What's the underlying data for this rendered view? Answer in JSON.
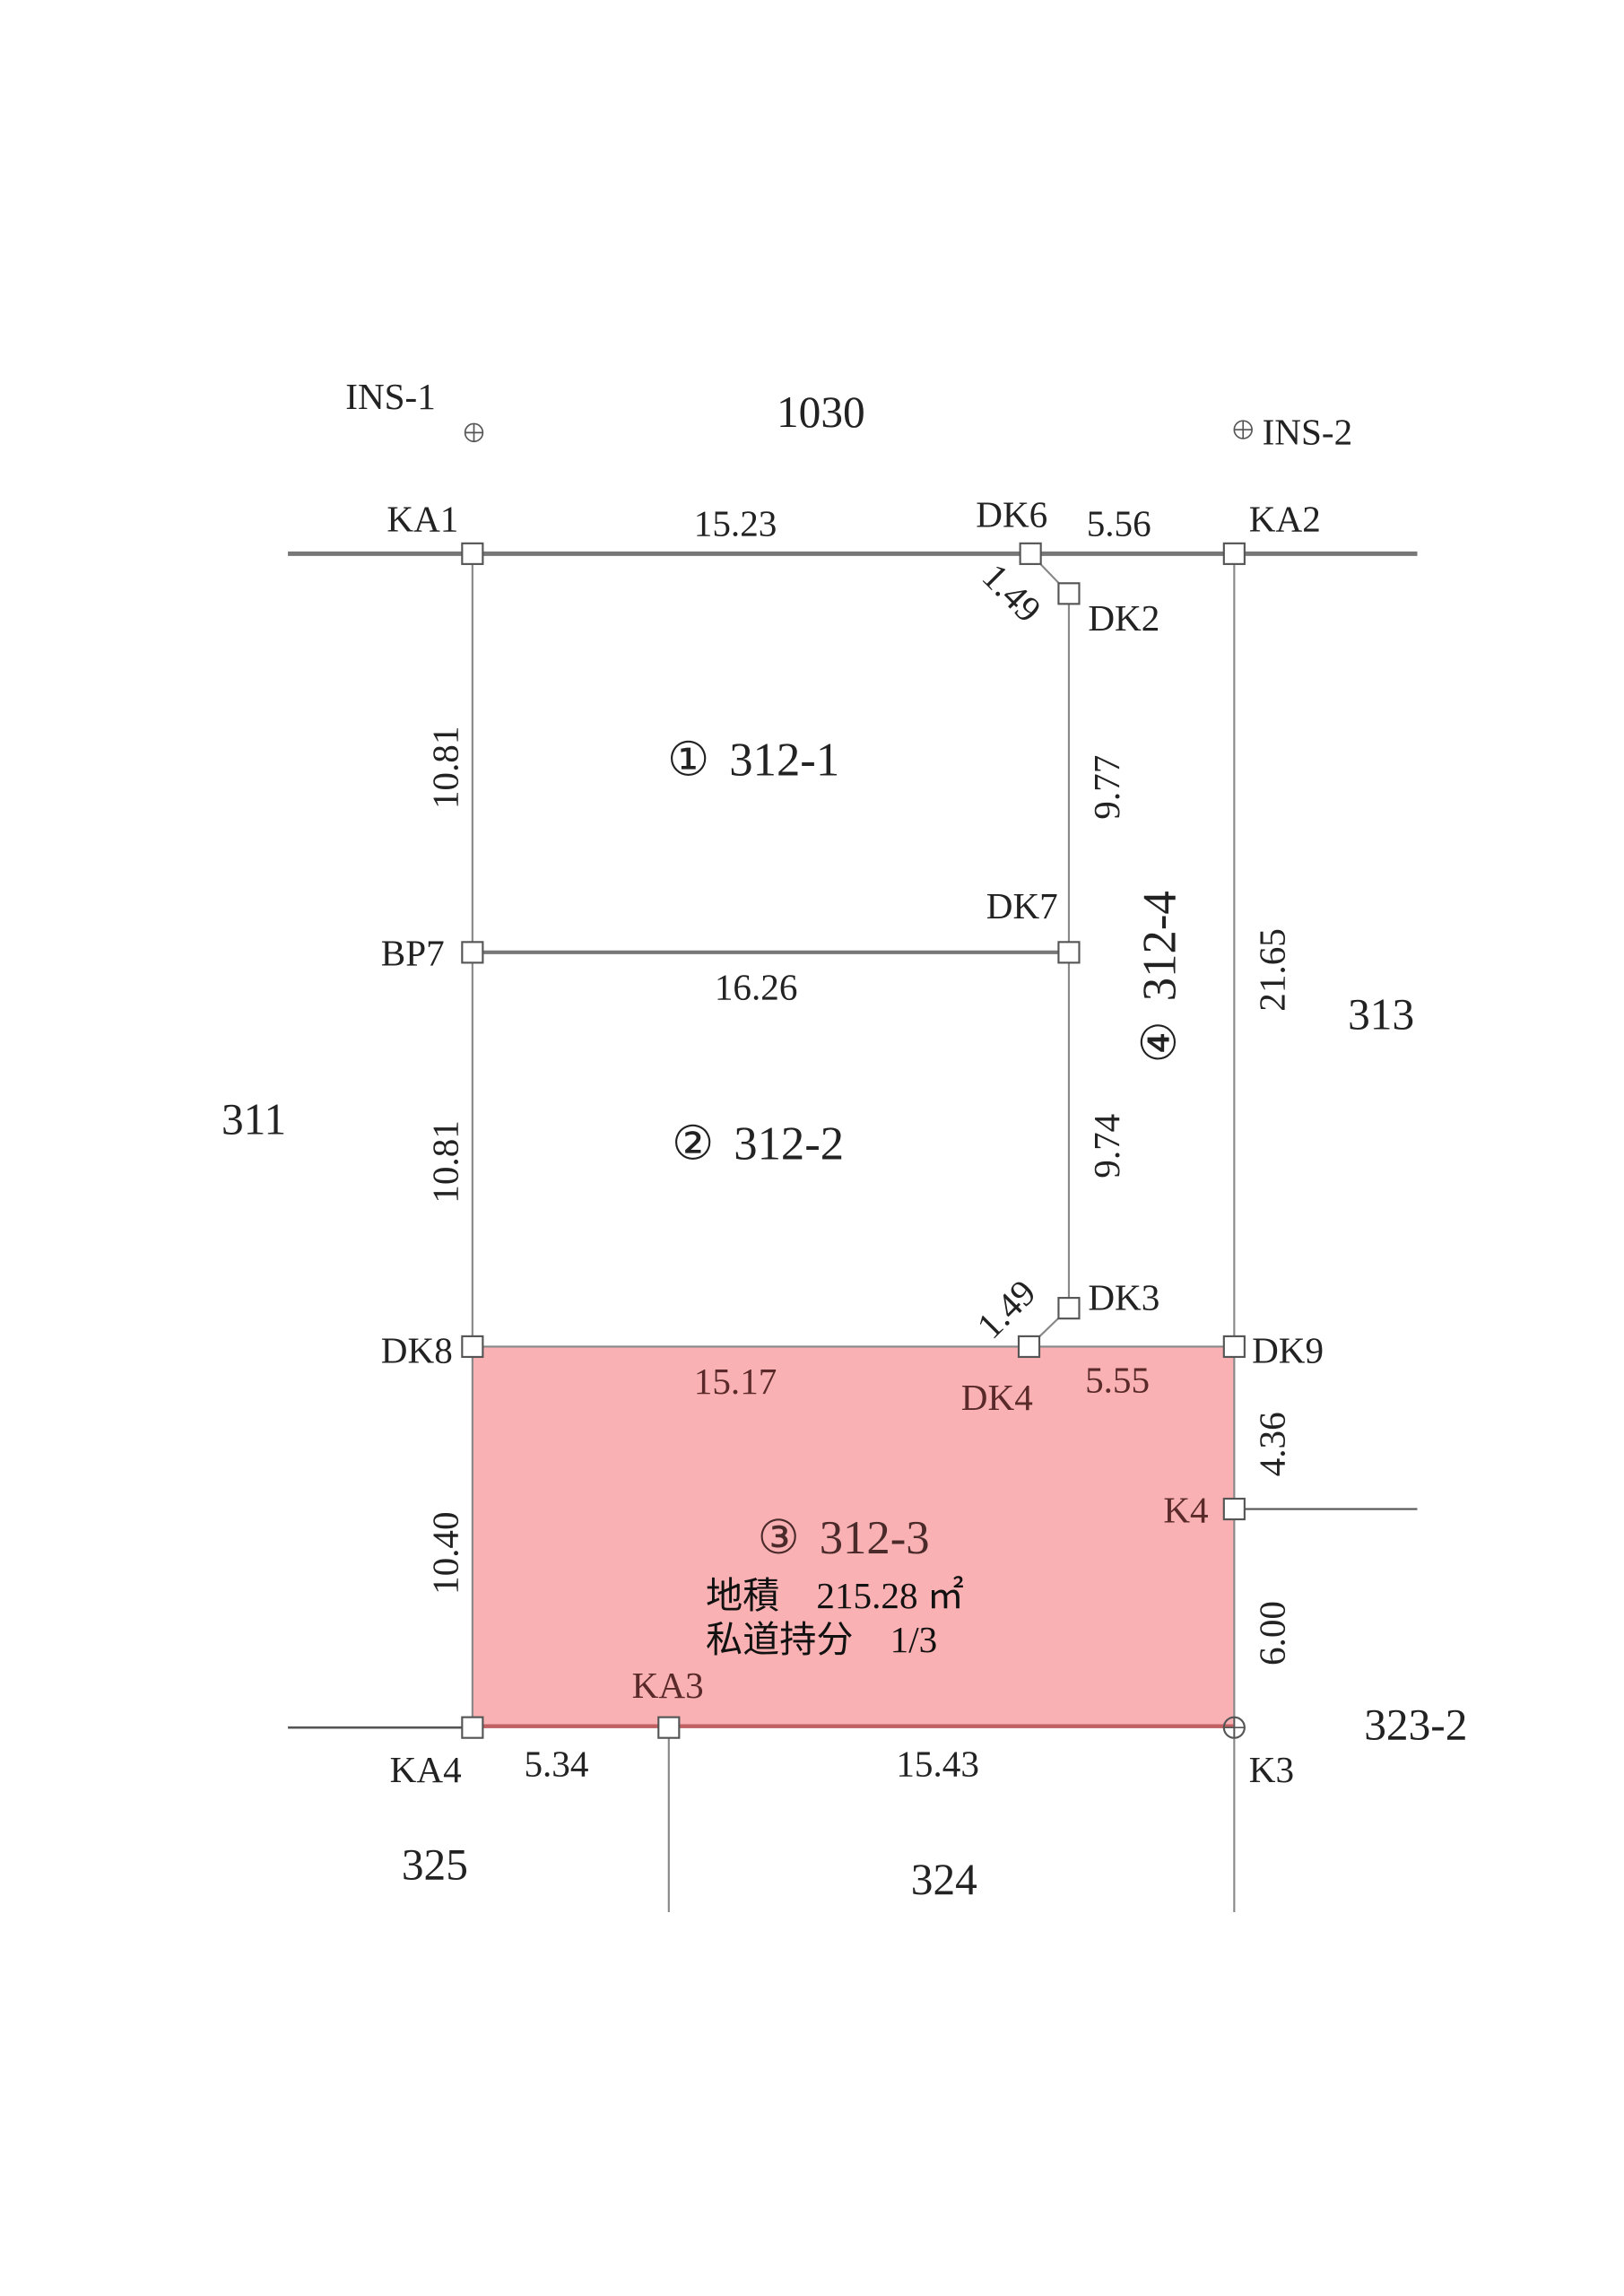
{
  "colors": {
    "highlight_fill": "#f9b1b3",
    "highlight_edge": "#c06060",
    "line": "#777777"
  },
  "points": {
    "INS1": "INS-1",
    "INS2": "INS-2",
    "KA1": "KA1",
    "KA2": "KA2",
    "KA3": "KA3",
    "KA4": "KA4",
    "DK2": "DK2",
    "DK3": "DK3",
    "DK4": "DK4",
    "DK6": "DK6",
    "DK7": "DK7",
    "DK8": "DK8",
    "DK9": "DK9",
    "BP7": "BP7",
    "K3": "K3",
    "K4": "K4"
  },
  "dimensions": {
    "ka1_dk6": "15.23",
    "dk6_ka2": "5.56",
    "dk6_dk2": "1.49",
    "ka1_bp7": "10.81",
    "bp7_dk8": "10.81",
    "bp7_dk7": "16.26",
    "dk2_dk7": "9.77",
    "dk7_dk3": "9.74",
    "ka2_dk9": "21.65",
    "dk3_dk4": "1.49",
    "dk8_dk4": "15.17",
    "dk4_dk9": "5.55",
    "dk9_k4": "4.36",
    "k4_k3": "6.00",
    "dk8_ka4": "10.40",
    "ka4_ka3": "5.34",
    "ka3_k3": "15.43"
  },
  "parcels": {
    "p1": {
      "num": "①",
      "lot": "312-1"
    },
    "p2": {
      "num": "②",
      "lot": "312-2"
    },
    "p3": {
      "num": "③",
      "lot": "312-3",
      "area": "地積　215.28 ㎡",
      "share": "私道持分　1/3"
    },
    "p4": {
      "num": "④",
      "lot": "312-4"
    }
  },
  "neighbors": {
    "n1030": "1030",
    "n311": "311",
    "n313": "313",
    "n323_2": "323-2",
    "n324": "324",
    "n325": "325"
  }
}
